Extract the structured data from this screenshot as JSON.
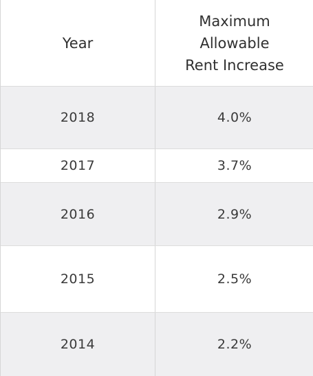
{
  "table": {
    "headers": {
      "year": "Year",
      "rate": "Maximum Allowable\nRent Increase"
    },
    "rows": [
      {
        "year": "2018",
        "rate": "4.0%"
      },
      {
        "year": "2017",
        "rate": "3.7%"
      },
      {
        "year": "2016",
        "rate": "2.9%"
      },
      {
        "year": "2015",
        "rate": "2.5%"
      },
      {
        "year": "2014",
        "rate": "2.2%"
      }
    ]
  }
}
